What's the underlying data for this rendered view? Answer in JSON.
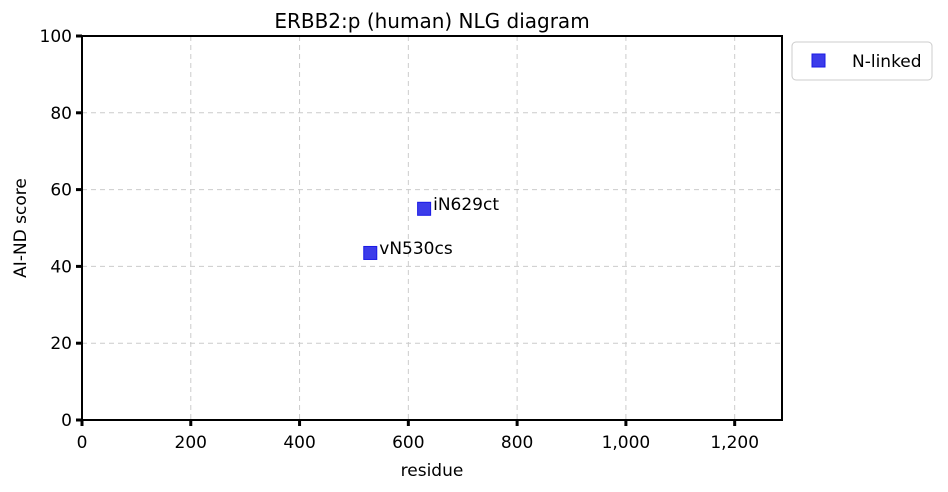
{
  "chart_data": {
    "type": "scatter",
    "title": "ERBB2:p (human) NLG diagram",
    "xlabel": "residue",
    "ylabel": "AI-ND score",
    "xlim": [
      0,
      1287
    ],
    "ylim": [
      0,
      100
    ],
    "xticks": [
      0,
      200,
      400,
      600,
      800,
      1000,
      1200
    ],
    "xtick_labels": [
      "0",
      "200",
      "400",
      "600",
      "800",
      "1,000",
      "1,200"
    ],
    "yticks": [
      0,
      20,
      40,
      60,
      80,
      100
    ],
    "ytick_labels": [
      "0",
      "20",
      "40",
      "60",
      "80",
      "100"
    ],
    "grid": true,
    "legend_position": "outside-top-right",
    "series": [
      {
        "name": "N-linked",
        "marker": "square",
        "color": "#1a1ae6",
        "points": [
          {
            "x": 530,
            "y": 43.5,
            "label": "vN530cs"
          },
          {
            "x": 629,
            "y": 55,
            "label": "iN629ct"
          }
        ]
      }
    ]
  }
}
